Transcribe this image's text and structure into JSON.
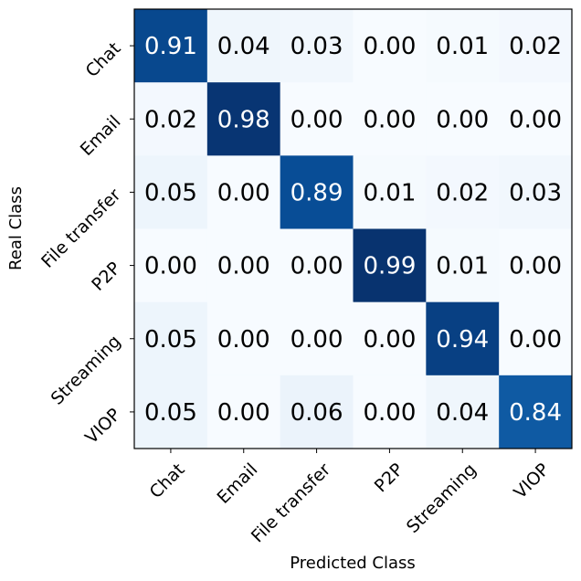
{
  "chart_data": {
    "type": "heatmap",
    "title": "",
    "xlabel": "Predicted Class",
    "ylabel": "Real Class",
    "x_categories": [
      "Chat",
      "Email",
      "File transfer",
      "P2P",
      "Streaming",
      "VIOP"
    ],
    "y_categories": [
      "Chat",
      "Email",
      "File transfer",
      "P2P",
      "Streaming",
      "VIOP"
    ],
    "values": [
      [
        0.91,
        0.04,
        0.03,
        0.0,
        0.01,
        0.02
      ],
      [
        0.02,
        0.98,
        0.0,
        0.0,
        0.0,
        0.0
      ],
      [
        0.05,
        0.0,
        0.89,
        0.01,
        0.02,
        0.03
      ],
      [
        0.0,
        0.0,
        0.0,
        0.99,
        0.01,
        0.0
      ],
      [
        0.05,
        0.0,
        0.0,
        0.0,
        0.94,
        0.0
      ],
      [
        0.05,
        0.0,
        0.06,
        0.0,
        0.04,
        0.84
      ]
    ],
    "value_format": "0.00",
    "colormap": "Blues",
    "value_range": [
      0,
      1
    ],
    "colors": {
      "low": "#f7fbff",
      "high": "#08306b"
    },
    "grid": false,
    "legend": "none"
  }
}
